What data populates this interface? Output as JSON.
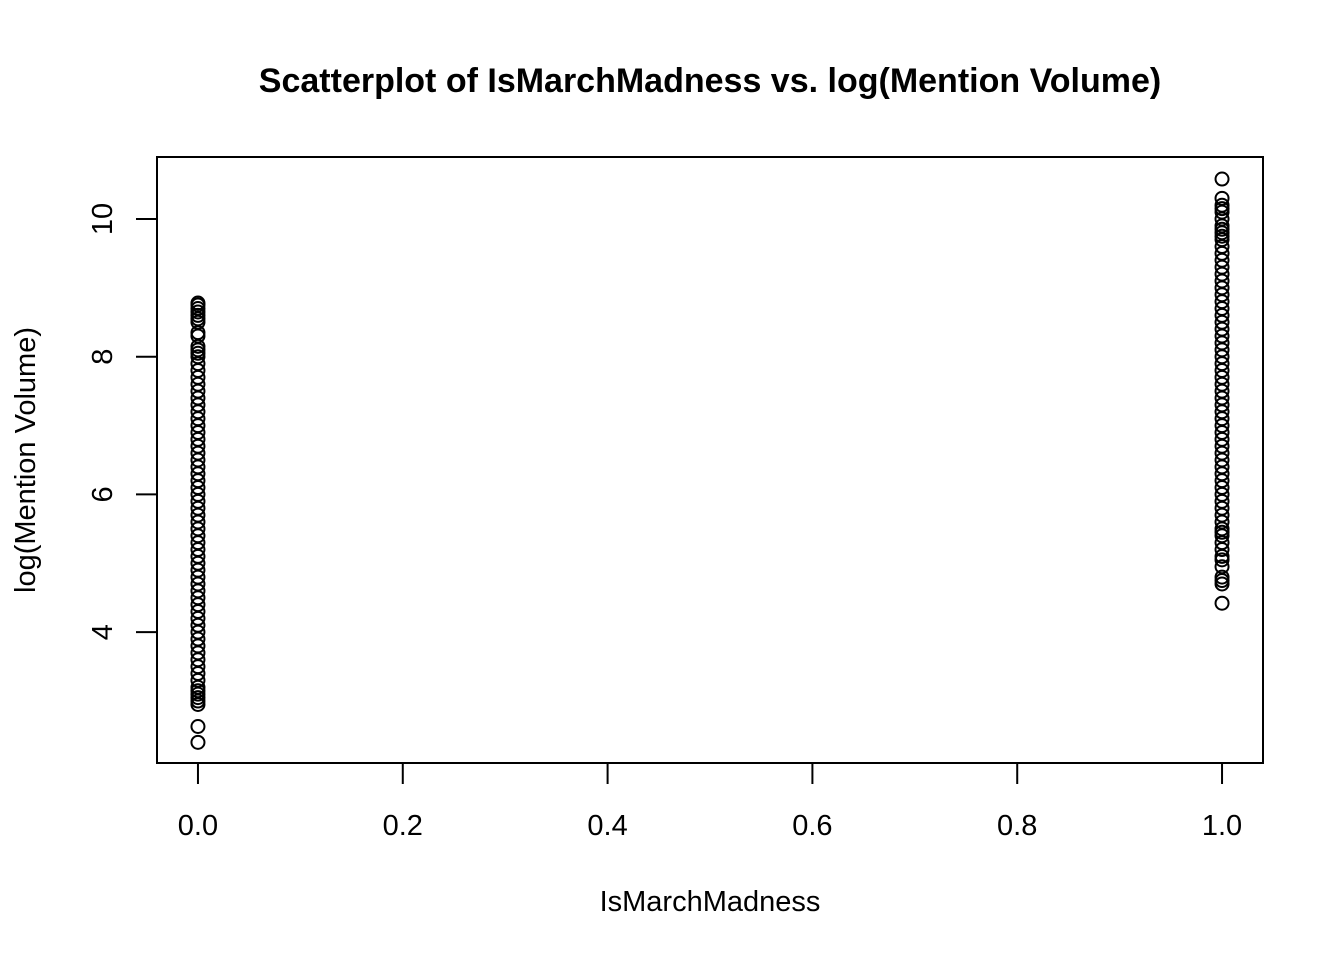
{
  "chart_data": {
    "type": "scatter",
    "title": "Scatterplot of IsMarchMadness vs. log(Mention Volume)",
    "xlabel": "IsMarchMadness",
    "ylabel": "log(Mention Volume)",
    "xlim": [
      -0.04,
      1.04
    ],
    "ylim": [
      2.1,
      10.9
    ],
    "x_ticks": [
      0.0,
      0.2,
      0.4,
      0.6,
      0.8,
      1.0
    ],
    "x_tick_labels": [
      "0.0",
      "0.2",
      "0.4",
      "0.6",
      "0.8",
      "1.0"
    ],
    "y_ticks": [
      4,
      6,
      8,
      10
    ],
    "y_tick_labels": [
      "4",
      "6",
      "8",
      "10"
    ],
    "marker": "open-circle",
    "marker_color": "#000000",
    "grid": false,
    "series": [
      {
        "x": 0,
        "y": [
          2.4,
          2.63,
          2.95,
          3.0,
          3.05,
          3.1,
          3.15,
          3.2,
          3.3,
          3.4,
          3.5,
          3.6,
          3.7,
          3.8,
          3.9,
          4.0,
          4.1,
          4.2,
          4.3,
          4.4,
          4.5,
          4.6,
          4.7,
          4.8,
          4.9,
          5.0,
          5.1,
          5.2,
          5.3,
          5.4,
          5.5,
          5.6,
          5.7,
          5.8,
          5.9,
          6.0,
          6.1,
          6.2,
          6.3,
          6.4,
          6.5,
          6.6,
          6.7,
          6.8,
          6.9,
          7.0,
          7.1,
          7.2,
          7.3,
          7.4,
          7.5,
          7.6,
          7.7,
          7.8,
          7.9,
          8.0,
          8.05,
          8.1,
          8.15,
          8.3,
          8.35,
          8.5,
          8.55,
          8.6,
          8.65,
          8.7,
          8.75,
          8.78
        ]
      },
      {
        "x": 1,
        "y": [
          4.42,
          4.7,
          4.75,
          4.8,
          4.95,
          5.05,
          5.1,
          5.2,
          5.3,
          5.4,
          5.45,
          5.5,
          5.6,
          5.7,
          5.8,
          5.9,
          6.0,
          6.1,
          6.2,
          6.3,
          6.4,
          6.5,
          6.6,
          6.7,
          6.8,
          6.9,
          7.0,
          7.1,
          7.2,
          7.3,
          7.4,
          7.5,
          7.6,
          7.7,
          7.8,
          7.9,
          8.0,
          8.1,
          8.2,
          8.3,
          8.4,
          8.5,
          8.6,
          8.7,
          8.8,
          8.9,
          9.0,
          9.1,
          9.2,
          9.3,
          9.4,
          9.5,
          9.6,
          9.7,
          9.75,
          9.8,
          9.85,
          9.9,
          10.0,
          10.1,
          10.15,
          10.2,
          10.3,
          10.58
        ]
      }
    ]
  }
}
